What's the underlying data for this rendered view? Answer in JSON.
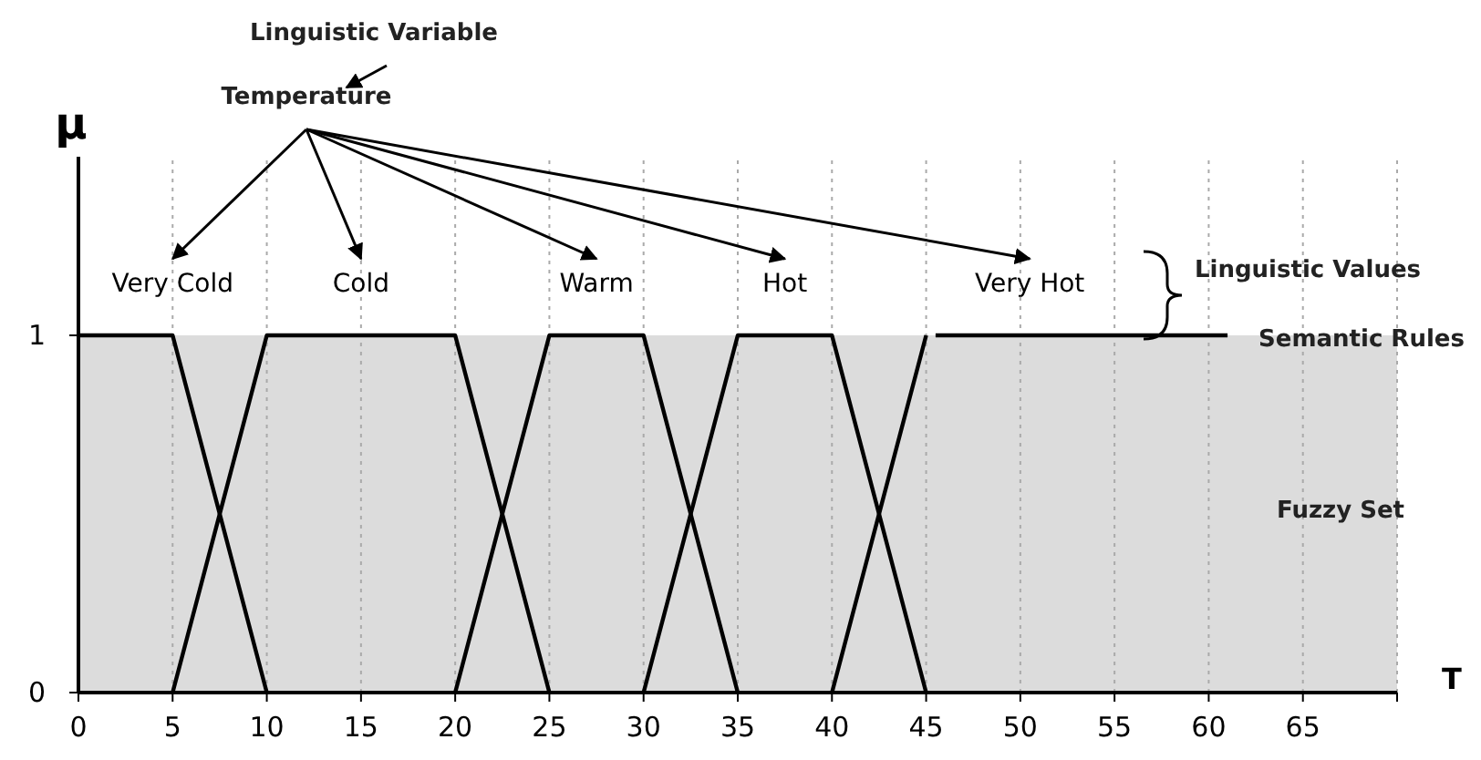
{
  "chart_data": {
    "type": "line",
    "xlabel": "T",
    "ylabel": "μ",
    "xlim": [
      0,
      70
    ],
    "ylim": [
      0,
      1.5
    ],
    "xticks": [
      0,
      5,
      10,
      15,
      20,
      25,
      30,
      35,
      40,
      45,
      50,
      55,
      60,
      65,
      {
        "value": 70,
        "label": null
      }
    ],
    "yticks": [
      0,
      1
    ],
    "grid": "x",
    "legend": false,
    "marker": "none",
    "line_style": "solid",
    "series": [
      {
        "name": "Very Cold",
        "color": "#000000",
        "x": [
          0,
          5,
          10
        ],
        "values": [
          1,
          1,
          0
        ]
      },
      {
        "name": "Cold",
        "color": "#000000",
        "x": [
          5,
          10,
          20,
          25
        ],
        "values": [
          0,
          1,
          1,
          0
        ]
      },
      {
        "name": "Warm",
        "color": "#000000",
        "x": [
          20,
          25,
          30,
          35
        ],
        "values": [
          0,
          1,
          1,
          0
        ]
      },
      {
        "name": "Hot",
        "color": "#000000",
        "x": [
          30,
          35,
          40,
          45
        ],
        "values": [
          0,
          1,
          1,
          0
        ]
      },
      {
        "name": "Very Hot",
        "color": "#000000",
        "x": [
          40,
          45,
          null,
          45.5,
          61
        ],
        "values": [
          0,
          1,
          null,
          1,
          1
        ]
      }
    ],
    "bands": [
      {
        "axis": "y",
        "from": 0,
        "to": 1,
        "color": "#dcdcdc"
      }
    ],
    "annotations": [
      "Linguistic Variable",
      "Temperature",
      "Linguistic Values",
      {
        "text": "Semantic Rules",
        "x": 61,
        "y": 1
      },
      "Fuzzy Set"
    ]
  }
}
